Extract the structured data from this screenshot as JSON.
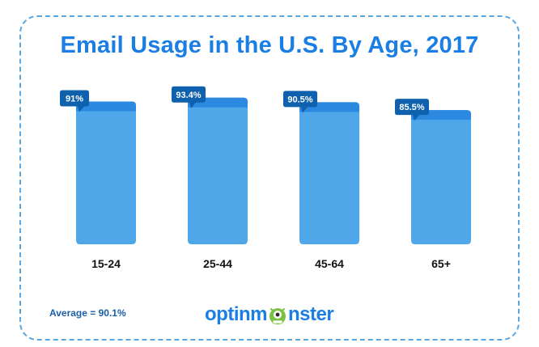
{
  "chart_data": {
    "type": "bar",
    "title": "Email Usage in the U.S. By Age, 2017",
    "categories": [
      "15-24",
      "25-44",
      "45-64",
      "65+"
    ],
    "values": [
      91,
      93.4,
      90.5,
      85.5
    ],
    "data_labels": [
      "91%",
      "93.4%",
      "90.5%",
      "85.5%"
    ],
    "unit": "%",
    "ylim": [
      0,
      100
    ],
    "grid": false,
    "legend": "none",
    "colors": {
      "bar": "#4fa7ea",
      "bar_cap": "#2b8ae0",
      "label_bg": "#1061ad",
      "title": "#1a7ee4"
    }
  },
  "footer": {
    "average": "Average = 90.1%",
    "brand_left": "optinm",
    "brand_right": "nster",
    "brand_icon": "monster-icon"
  }
}
